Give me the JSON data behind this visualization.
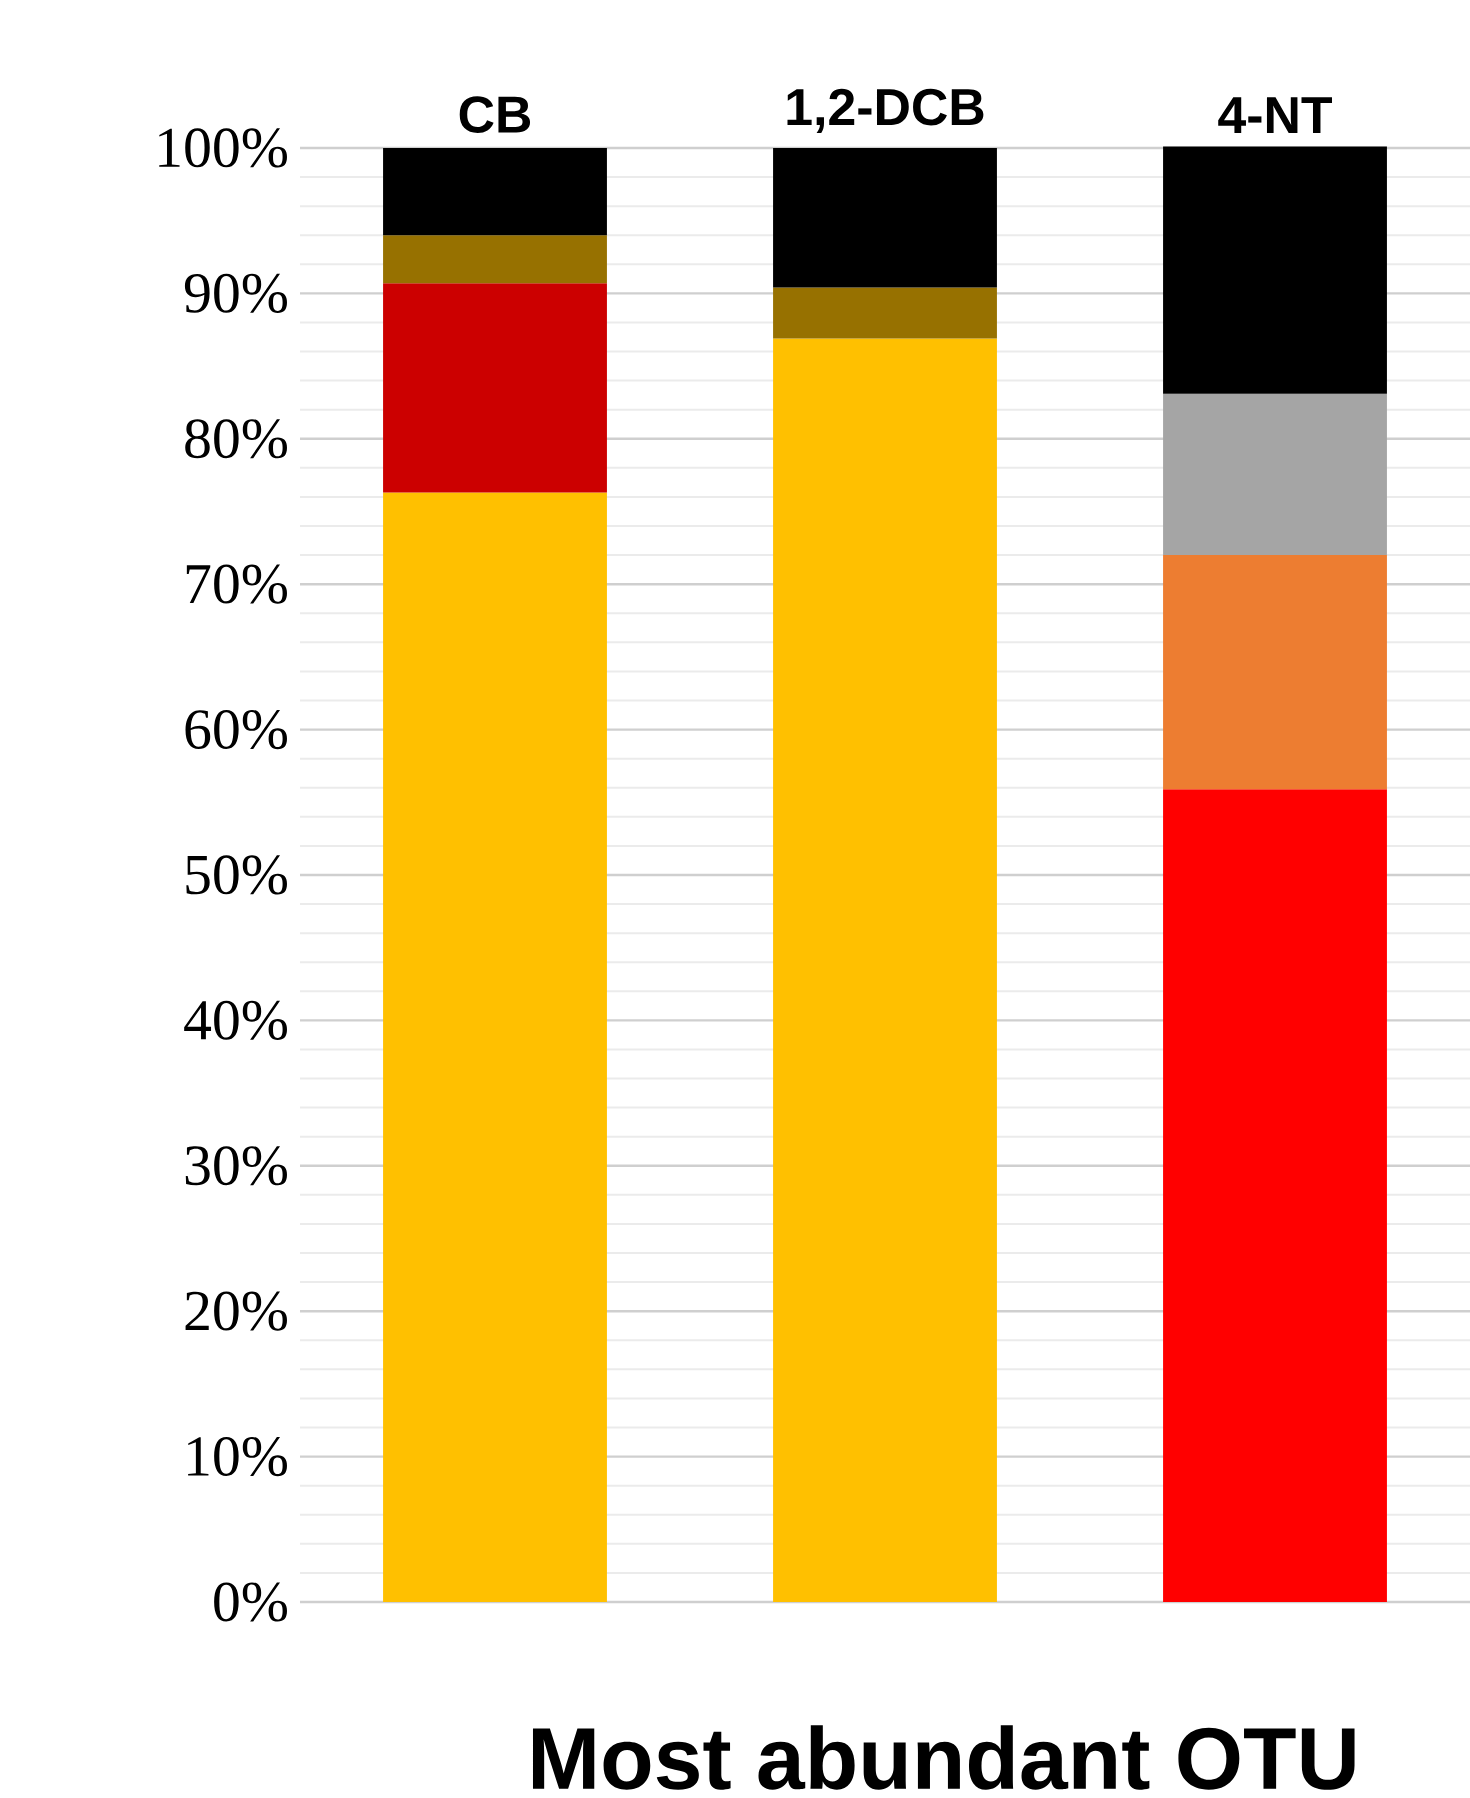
{
  "chart_data": {
    "type": "bar",
    "stacked": true,
    "xlabel": "Most abundant OTU",
    "categories": [
      "CB",
      "1,2-DCB",
      "4-NT"
    ],
    "series": [
      {
        "color": "#ffc000",
        "values": [
          76.3,
          86.9,
          null
        ]
      },
      {
        "color": "#cc0000",
        "values": [
          14.4,
          null,
          null
        ]
      },
      {
        "color": "#ff0000",
        "values": [
          null,
          null,
          55.9
        ]
      },
      {
        "color": "#ed7d31",
        "values": [
          null,
          null,
          16.1
        ]
      },
      {
        "color": "#a5a5a5",
        "values": [
          null,
          null,
          11.1
        ]
      },
      {
        "color": "#977100",
        "values": [
          3.3,
          3.5,
          null
        ]
      },
      {
        "color": "#000000",
        "values": [
          6.0,
          9.6,
          17.0
        ]
      }
    ],
    "ylim": [
      0,
      100
    ],
    "yticks": [
      {
        "value": 0,
        "label": "0%"
      },
      {
        "value": 10,
        "label": "10%"
      },
      {
        "value": 20,
        "label": "20%"
      },
      {
        "value": 30,
        "label": "30%"
      },
      {
        "value": 40,
        "label": "40%"
      },
      {
        "value": 50,
        "label": "50%"
      },
      {
        "value": 60,
        "label": "60%"
      },
      {
        "value": 70,
        "label": "70%"
      },
      {
        "value": 80,
        "label": "80%"
      },
      {
        "value": 90,
        "label": "90%"
      },
      {
        "value": 100,
        "label": "100%"
      }
    ],
    "grid": "y"
  }
}
